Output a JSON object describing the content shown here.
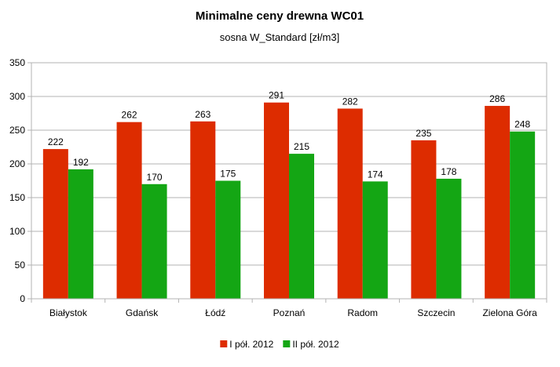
{
  "chart_data": {
    "type": "bar",
    "title": "Minimalne ceny drewna WC01",
    "subtitle": "sosna W_Standard [zł/m3]",
    "xlabel": "",
    "ylabel": "",
    "categories": [
      "Białystok",
      "Gdańsk",
      "Łódź",
      "Poznań",
      "Radom",
      "Szczecin",
      "Zielona Góra"
    ],
    "series": [
      {
        "name": "I pół. 2012",
        "values": [
          222,
          262,
          263,
          291,
          282,
          235,
          286
        ],
        "color": "#dd2c00"
      },
      {
        "name": "II pół. 2012",
        "values": [
          192,
          170,
          175,
          215,
          174,
          178,
          248
        ],
        "color": "#14a614"
      }
    ],
    "ylim": [
      0,
      350
    ],
    "yticks": [
      0,
      50,
      100,
      150,
      200,
      250,
      300,
      350
    ],
    "grid": true,
    "legend": "bottom",
    "data_labels": true
  }
}
